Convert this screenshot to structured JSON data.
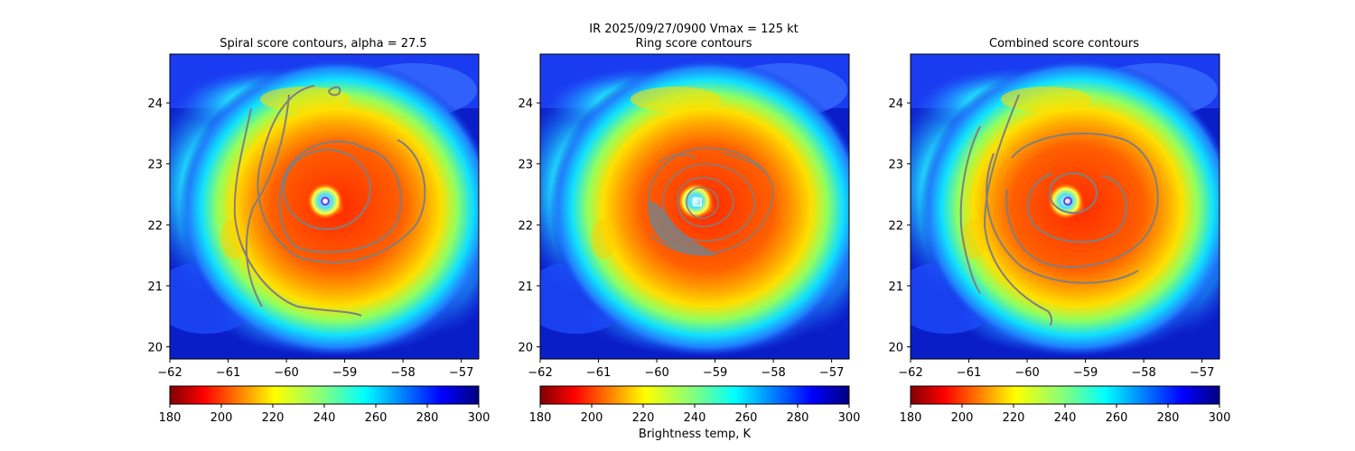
{
  "figure": {
    "suptitle": "IR  2025/09/27/0900    Vmax = 125 kt",
    "colorbar_label": "Brightness temp, K"
  },
  "colors": {
    "contour": "#7f7f7f",
    "center_marker": "#8a2be2",
    "box_marker": "#ffffff"
  },
  "chart_data": [
    {
      "type": "heatmap",
      "title": "Spiral score contours, alpha = 27.5",
      "overlay": "spiral",
      "xlim": [
        -62,
        -56.7
      ],
      "ylim": [
        19.8,
        24.8
      ],
      "xticks": [
        -62,
        -61,
        -60,
        -59,
        -58,
        -57
      ],
      "xtick_labels": [
        "−62",
        "−61",
        "−60",
        "−59",
        "−58",
        "−57"
      ],
      "yticks": [
        20,
        21,
        22,
        23,
        24
      ],
      "ytick_labels": [
        "20",
        "21",
        "22",
        "23",
        "24"
      ],
      "center": {
        "lon": -59.25,
        "lat": 22.42
      },
      "colorbar": {
        "vmin": 180,
        "vmax": 300,
        "cmap": "jet_r",
        "ticks": [
          180,
          200,
          220,
          240,
          260,
          280,
          300
        ],
        "tick_labels": [
          "180",
          "200",
          "220",
          "240",
          "260",
          "280",
          "300"
        ]
      }
    },
    {
      "type": "heatmap",
      "title": "Ring score contours",
      "overlay": "ring",
      "xlim": [
        -62,
        -56.7
      ],
      "ylim": [
        19.8,
        24.8
      ],
      "xticks": [
        -62,
        -61,
        -60,
        -59,
        -58,
        -57
      ],
      "xtick_labels": [
        "−62",
        "−61",
        "−60",
        "−59",
        "−58",
        "−57"
      ],
      "yticks": [
        20,
        21,
        22,
        23,
        24
      ],
      "ytick_labels": [
        "20",
        "21",
        "22",
        "23",
        "24"
      ],
      "center": {
        "lon": -59.25,
        "lat": 22.38
      },
      "colorbar": {
        "vmin": 180,
        "vmax": 300,
        "cmap": "jet_r",
        "ticks": [
          180,
          200,
          220,
          240,
          260,
          280,
          300
        ],
        "tick_labels": [
          "180",
          "200",
          "220",
          "240",
          "260",
          "280",
          "300"
        ]
      }
    },
    {
      "type": "heatmap",
      "title": "Combined score contours",
      "overlay": "combined",
      "xlim": [
        -62,
        -56.7
      ],
      "ylim": [
        19.8,
        24.8
      ],
      "xticks": [
        -62,
        -61,
        -60,
        -59,
        -58,
        -57
      ],
      "xtick_labels": [
        "−62",
        "−61",
        "−60",
        "−59",
        "−58",
        "−57"
      ],
      "yticks": [
        20,
        21,
        22,
        23,
        24
      ],
      "ytick_labels": [
        "20",
        "21",
        "22",
        "23",
        "24"
      ],
      "center": {
        "lon": -59.25,
        "lat": 22.38
      },
      "colorbar": {
        "vmin": 180,
        "vmax": 300,
        "cmap": "jet_r",
        "ticks": [
          180,
          200,
          220,
          240,
          260,
          280,
          300
        ],
        "tick_labels": [
          "180",
          "200",
          "220",
          "240",
          "260",
          "280",
          "300"
        ]
      }
    }
  ]
}
